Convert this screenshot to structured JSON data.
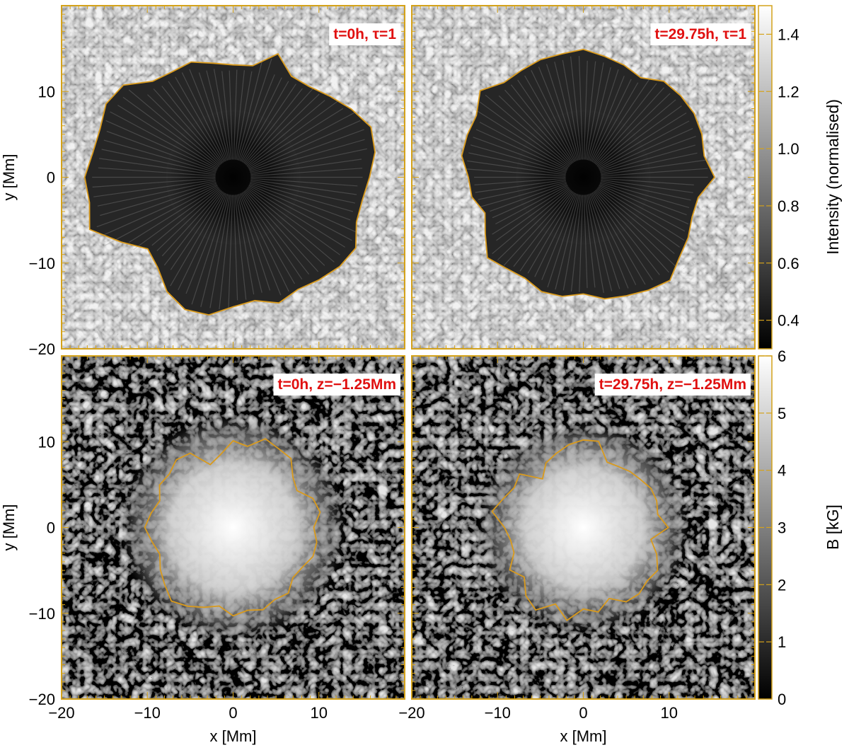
{
  "colors": {
    "frame": "#d4a21a",
    "contour": "#d99a1c",
    "label_text": "#e01010",
    "label_bg": "#ffffff"
  },
  "chart_data": [
    {
      "type": "heatmap",
      "panel": "top-left",
      "map": "intensity",
      "label": "t=0h, τ=1",
      "ylabel": "y [Mm]",
      "xlabel": "",
      "xlim": [
        -20,
        20
      ],
      "ylim": [
        -20,
        20
      ],
      "yticks": [
        10,
        0,
        -10,
        -20
      ],
      "ytick_labels": [
        "10",
        "0",
        "−10",
        "−20"
      ],
      "contour_radius_Mm": [
        15.9,
        16.8,
        17.1,
        15.9,
        14.7,
        13.8,
        13.6,
        15.3,
        13.2,
        13.1,
        13.5,
        14.3,
        14.2,
        14.6,
        16.7,
        17.1,
        16.5,
        16.6,
        17.3,
        17.0,
        17.8,
        15.1,
        13.0,
        13.7,
        15.4,
        16.4,
        16.3,
        15.1,
        14.6,
        15.6,
        15.1,
        15.6,
        16.2,
        16.5,
        15.3,
        15.3
      ]
    },
    {
      "type": "heatmap",
      "panel": "top-right",
      "map": "intensity",
      "label": "t=29.75h, τ=1",
      "xlabel": "",
      "ylabel": "",
      "xlim": [
        -20,
        20
      ],
      "ylim": [
        -20,
        20
      ],
      "contour_radius_Mm": [
        15.3,
        14.3,
        14.7,
        14.9,
        14.8,
        14.6,
        13.4,
        13.9,
        14.3,
        14.9,
        14.6,
        14.6,
        14.4,
        14.4,
        15.7,
        14.4,
        14.4,
        14.4,
        13.4,
        13.2,
        12.2,
        13.2,
        14.6,
        13.9,
        13.6,
        14.2,
        14.1,
        13.6,
        14.4,
        14.7,
        15.2,
        15.7,
        14.6,
        14.1,
        13.5,
        13.6
      ]
    },
    {
      "type": "heatmap",
      "panel": "bottom-left",
      "map": "magnetic field",
      "label": "t=0h, z=−1.25Mm",
      "xlabel": "x [Mm]",
      "ylabel": "y [Mm]",
      "xlim": [
        -20,
        20
      ],
      "ylim": [
        -20,
        20
      ],
      "xticks": [
        -20,
        -10,
        0,
        10
      ],
      "xtick_labels": [
        "−20",
        "−10",
        "0",
        "10"
      ],
      "yticks": [
        10,
        0,
        -10,
        -20
      ],
      "ytick_labels": [
        "10",
        "0",
        "−10",
        "−20"
      ],
      "contour_radius_Mm": [
        9.4,
        10.3,
        9.9,
        8.6,
        9.1,
        10.5,
        10.6,
        11.0,
        9.6,
        10.1,
        8.6,
        7.8,
        10.0,
        10.3,
        9.7,
        9.9,
        9.1,
        9.7,
        10.3,
        9.6,
        9.1,
        9.8,
        10.4,
        11.2,
        10.6,
        9.9,
        9.3,
        10.3,
        9.8,
        10.2,
        9.7,
        10.0,
        9.1,
        9.3,
        9.9,
        9.9
      ]
    },
    {
      "type": "heatmap",
      "panel": "bottom-right",
      "map": "magnetic field",
      "label": "t=29.75h, z=−1.25Mm",
      "xlabel": "x [Mm]",
      "ylabel": "",
      "xlim": [
        -20,
        20
      ],
      "ylim": [
        -20,
        20
      ],
      "xticks": [
        -20,
        -10,
        0,
        10
      ],
      "xtick_labels": [
        "−20",
        "−10",
        "0",
        "10"
      ],
      "contour_radius_Mm": [
        9.9,
        8.8,
        9.1,
        9.1,
        8.7,
        8.5,
        8.2,
        8.1,
        10.2,
        10.2,
        9.8,
        9.2,
        8.7,
        7.4,
        9.7,
        9.3,
        9.9,
        10.8,
        9.2,
        8.6,
        8.6,
        9.9,
        9.0,
        10.4,
        11.1,
        9.5,
        11.0,
        9.5,
        10.0,
        8.8,
        10.0,
        10.1,
        9.7,
        10.0,
        9.1,
        8.0
      ]
    },
    {
      "type": "colorbar",
      "label": "Intensity (normalised)",
      "ticks": [
        1.4,
        1.2,
        1.0,
        0.8,
        0.6,
        0.4
      ],
      "tick_labels": [
        "1.4",
        "1.2",
        "1.0",
        "0.8",
        "0.6",
        "0.4"
      ],
      "range": [
        0.3,
        1.5
      ]
    },
    {
      "type": "colorbar",
      "label": "B [kG]",
      "ticks": [
        6,
        5,
        4,
        3,
        2,
        1,
        0
      ],
      "tick_labels": [
        "6",
        "5",
        "4",
        "3",
        "2",
        "1",
        "0"
      ],
      "range": [
        0,
        6
      ]
    }
  ]
}
